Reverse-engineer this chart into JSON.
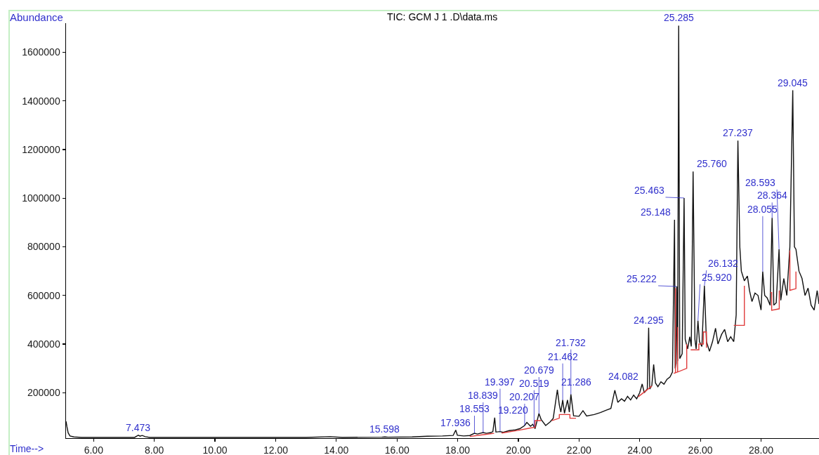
{
  "chart_data": {
    "type": "line",
    "title": "TIC: GCM J 1 .D\\data.ms",
    "xlabel": "Time-->",
    "ylabel": "Abundance",
    "marker": "none",
    "xlim": [
      5.09,
      29.91
    ],
    "xticks": [
      {
        "value": 6,
        "label": "6.00"
      },
      {
        "value": 8,
        "label": "8.00"
      },
      {
        "value": 10,
        "label": "10.00"
      },
      {
        "value": 12,
        "label": "12.00"
      },
      {
        "value": 14,
        "label": "14.00"
      },
      {
        "value": 16,
        "label": "16.00"
      },
      {
        "value": 18,
        "label": "18.00"
      },
      {
        "value": 20,
        "label": "20.00"
      },
      {
        "value": 22,
        "label": "22.00"
      },
      {
        "value": 24,
        "label": "24.00"
      },
      {
        "value": 26,
        "label": "26.00"
      },
      {
        "value": 28,
        "label": "28.00"
      }
    ],
    "ylim": [
      13000,
      1720000
    ],
    "yticks": [
      200000,
      400000,
      600000,
      800000,
      1000000,
      1200000,
      1400000,
      1600000
    ],
    "series": [
      {
        "color": "#111111",
        "x": [
          5.09,
          5.12,
          5.16,
          5.22,
          5.35,
          5.6,
          6.5,
          7.35,
          7.43,
          7.473,
          7.53,
          7.6,
          7.7,
          7.85,
          9.0,
          11.0,
          13.0,
          13.8,
          14.2,
          15.5,
          15.598,
          15.7,
          16.5,
          17.0,
          17.5,
          17.85,
          17.936,
          17.99,
          18.2,
          18.4,
          18.553,
          18.65,
          18.839,
          18.95,
          19.1,
          19.16,
          19.22,
          19.26,
          19.397,
          19.5,
          19.7,
          19.9,
          20.05,
          20.207,
          20.28,
          20.4,
          20.475,
          20.55,
          20.679,
          20.75,
          20.9,
          21.05,
          21.15,
          21.286,
          21.35,
          21.4,
          21.462,
          21.52,
          21.62,
          21.68,
          21.732,
          21.82,
          22.0,
          22.13,
          22.25,
          22.5,
          22.7,
          22.9,
          23.05,
          23.18,
          23.28,
          23.4,
          23.5,
          23.6,
          23.7,
          23.8,
          23.9,
          24.0,
          24.082,
          24.15,
          24.25,
          24.295,
          24.33,
          24.4,
          24.46,
          24.52,
          24.6,
          24.7,
          24.8,
          24.9,
          25.0,
          25.08,
          25.148,
          25.17,
          25.2,
          25.222,
          25.25,
          25.285,
          25.32,
          25.4,
          25.463,
          25.5,
          25.58,
          25.65,
          25.7,
          25.76,
          25.82,
          25.86,
          25.92,
          25.97,
          26.05,
          26.132,
          26.2,
          26.3,
          26.4,
          26.5,
          26.58,
          26.7,
          26.8,
          26.9,
          27.0,
          27.1,
          27.18,
          27.237,
          27.3,
          27.35,
          27.45,
          27.55,
          27.62,
          27.7,
          27.8,
          27.9,
          28.0,
          28.055,
          28.12,
          28.2,
          28.3,
          28.364,
          28.42,
          28.5,
          28.593,
          28.65,
          28.75,
          28.85,
          28.95,
          29.045,
          29.1,
          29.15,
          29.25,
          29.35,
          29.45,
          29.55,
          29.65,
          29.75,
          29.85,
          29.91
        ],
        "values": [
          82000,
          60000,
          35000,
          22000,
          18000,
          16000,
          16000,
          16000,
          22000,
          25000,
          21000,
          24000,
          19000,
          16000,
          16000,
          16000,
          16000,
          19000,
          16000,
          17000,
          18000,
          17000,
          18000,
          21000,
          22000,
          24000,
          46000,
          25000,
          22000,
          24000,
          33000,
          30000,
          36000,
          33000,
          36000,
          40000,
          97000,
          38000,
          40000,
          37000,
          44000,
          47000,
          52000,
          65000,
          78000,
          62000,
          70000,
          52000,
          114000,
          90000,
          65000,
          80000,
          95000,
          212000,
          150000,
          120000,
          170000,
          115000,
          170000,
          120000,
          193000,
          105000,
          103000,
          126000,
          104000,
          110000,
          118000,
          128000,
          135000,
          210000,
          160000,
          175000,
          165000,
          185000,
          170000,
          190000,
          175000,
          200000,
          236000,
          200000,
          215000,
          467000,
          215000,
          230000,
          316000,
          240000,
          225000,
          245000,
          235000,
          255000,
          265000,
          285000,
          911000,
          300000,
          320000,
          637000,
          330000,
          1710000,
          340000,
          360000,
          1001000,
          420000,
          380000,
          430000,
          390000,
          1110000,
          420000,
          380000,
          496000,
          410000,
          390000,
          640000,
          410000,
          370000,
          410000,
          465000,
          400000,
          440000,
          460000,
          410000,
          430000,
          410000,
          520000,
          1237000,
          800000,
          700000,
          660000,
          680000,
          620000,
          575000,
          610000,
          600000,
          540000,
          698000,
          600000,
          590000,
          560000,
          919000,
          560000,
          570000,
          790000,
          580000,
          670000,
          600000,
          800000,
          1444000,
          800000,
          790000,
          700000,
          670000,
          600000,
          630000,
          560000,
          540000,
          620000,
          565000
        ]
      },
      {
        "color": "#e03c3c",
        "x": [
          18.4,
          18.9,
          19.2,
          19.3,
          19.45,
          20.0,
          20.4,
          20.55,
          20.55,
          20.75,
          20.9,
          21.1,
          21.35,
          21.35,
          21.7,
          21.7,
          21.9,
          22.5,
          23.95,
          24.4,
          24.8,
          25.12,
          25.18,
          25.18,
          25.18,
          25.25,
          25.25,
          25.25,
          25.55,
          25.55,
          25.6,
          25.68,
          25.95,
          25.95,
          26.1,
          26.1,
          26.2,
          26.2,
          26.5,
          27.1,
          27.45,
          27.45,
          27.8,
          28.3,
          28.35,
          28.35,
          28.6,
          28.6,
          28.8,
          28.95,
          28.95,
          29.15,
          29.15
        ],
        "values": [
          20000,
          28000,
          33000,
          null,
          34000,
          45000,
          55000,
          58000,
          85000,
          85000,
          null,
          85000,
          95000,
          110000,
          110000,
          95000,
          95000,
          null,
          183000,
          227000,
          null,
          280000,
          282000,
          630000,
          282000,
          285000,
          470000,
          285000,
          300000,
          400000,
          null,
          376000,
          376000,
          400000,
          400000,
          450000,
          450000,
          385000,
          null,
          477000,
          477000,
          640000,
          null,
          612000,
          612000,
          539000,
          545000,
          620000,
          null,
          785000,
          621000,
          628000,
          698000
        ]
      }
    ],
    "annotations": [
      {
        "text": "7.473",
        "x": 7.473,
        "y": 25000
      },
      {
        "text": "15.598",
        "x": 15.598,
        "y": 18000
      },
      {
        "text": "17.936",
        "x": 17.936,
        "y": 46000
      },
      {
        "text": "18.553",
        "x": 18.553,
        "y": 33000
      },
      {
        "text": "18.839",
        "x": 18.839,
        "y": 36000
      },
      {
        "text": "19.220",
        "x": 19.22,
        "y": 97000
      },
      {
        "text": "19.397",
        "x": 19.397,
        "y": 40000
      },
      {
        "text": "20.207",
        "x": 20.207,
        "y": 65000
      },
      {
        "text": "20.519",
        "x": 20.519,
        "y": 60000
      },
      {
        "text": "20.679",
        "x": 20.679,
        "y": 114000
      },
      {
        "text": "21.286",
        "x": 21.286,
        "y": 212000
      },
      {
        "text": "21.462",
        "x": 21.462,
        "y": 170000
      },
      {
        "text": "21.732",
        "x": 21.732,
        "y": 193000
      },
      {
        "text": "24.082",
        "x": 24.082,
        "y": 236000
      },
      {
        "text": "24.295",
        "x": 24.295,
        "y": 467000
      },
      {
        "text": "25.148",
        "x": 25.148,
        "y": 911000
      },
      {
        "text": "25.222",
        "x": 25.222,
        "y": 637000
      },
      {
        "text": "25.285",
        "x": 25.285,
        "y": 1710000
      },
      {
        "text": "25.463",
        "x": 25.463,
        "y": 1001000
      },
      {
        "text": "25.760",
        "x": 25.76,
        "y": 1110000
      },
      {
        "text": "25.920",
        "x": 25.92,
        "y": 496000
      },
      {
        "text": "26.132",
        "x": 26.132,
        "y": 640000
      },
      {
        "text": "27.237",
        "x": 27.237,
        "y": 1237000
      },
      {
        "text": "28.055",
        "x": 28.055,
        "y": 698000
      },
      {
        "text": "28.364",
        "x": 28.364,
        "y": 919000
      },
      {
        "text": "28.593",
        "x": 28.593,
        "y": 790000
      },
      {
        "text": "29.045",
        "x": 29.045,
        "y": 1444000
      }
    ]
  }
}
